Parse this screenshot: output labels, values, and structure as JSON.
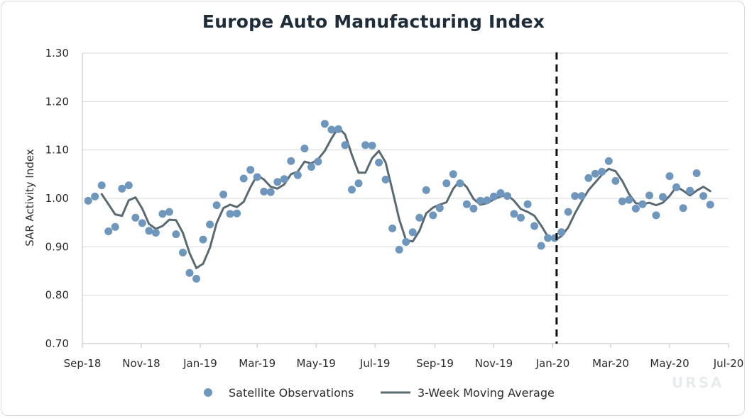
{
  "chart_data": {
    "type": "line",
    "title": "Europe Auto Manufacturing Index",
    "ylabel": "SAR Activity Index",
    "xlabel": "",
    "ylim": [
      0.7,
      1.3
    ],
    "xlim": [
      "2018-09-01",
      "2020-07-01"
    ],
    "y_ticks": [
      "0.70",
      "0.80",
      "0.90",
      "1.00",
      "1.10",
      "1.20",
      "1.30"
    ],
    "x_ticks": [
      {
        "date": "2018-09-01",
        "label": "Sep-18"
      },
      {
        "date": "2018-11-01",
        "label": "Nov-18"
      },
      {
        "date": "2019-01-01",
        "label": "Jan-19"
      },
      {
        "date": "2019-03-01",
        "label": "Mar-19"
      },
      {
        "date": "2019-05-01",
        "label": "May-19"
      },
      {
        "date": "2019-07-01",
        "label": "Jul-19"
      },
      {
        "date": "2019-09-01",
        "label": "Sep-19"
      },
      {
        "date": "2019-11-01",
        "label": "Nov-19"
      },
      {
        "date": "2020-01-01",
        "label": "Jan-20"
      },
      {
        "date": "2020-03-01",
        "label": "Mar-20"
      },
      {
        "date": "2020-05-01",
        "label": "May-20"
      },
      {
        "date": "2020-07-01",
        "label": "Jul-20"
      }
    ],
    "grid": "horizontal",
    "legend_position": "bottom",
    "annotation_line_date": "2020-01-05",
    "series": [
      {
        "name": "Satellite Observations",
        "style": "scatter",
        "color": "#6f97bd",
        "points": [
          [
            "2018-09-07",
            0.995
          ],
          [
            "2018-09-14",
            1.004
          ],
          [
            "2018-09-21",
            1.027
          ],
          [
            "2018-09-28",
            0.932
          ],
          [
            "2018-10-05",
            0.941
          ],
          [
            "2018-10-12",
            1.02
          ],
          [
            "2018-10-19",
            1.027
          ],
          [
            "2018-10-26",
            0.96
          ],
          [
            "2018-11-02",
            0.949
          ],
          [
            "2018-11-09",
            0.933
          ],
          [
            "2018-11-16",
            0.929
          ],
          [
            "2018-11-23",
            0.968
          ],
          [
            "2018-11-30",
            0.972
          ],
          [
            "2018-12-07",
            0.926
          ],
          [
            "2018-12-14",
            0.888
          ],
          [
            "2018-12-21",
            0.846
          ],
          [
            "2018-12-28",
            0.834
          ],
          [
            "2019-01-04",
            0.915
          ],
          [
            "2019-01-11",
            0.946
          ],
          [
            "2019-01-18",
            0.986
          ],
          [
            "2019-01-25",
            1.008
          ],
          [
            "2019-02-01",
            0.968
          ],
          [
            "2019-02-08",
            0.969
          ],
          [
            "2019-02-15",
            1.041
          ],
          [
            "2019-02-22",
            1.059
          ],
          [
            "2019-03-01",
            1.044
          ],
          [
            "2019-03-08",
            1.014
          ],
          [
            "2019-03-15",
            1.013
          ],
          [
            "2019-03-22",
            1.034
          ],
          [
            "2019-03-29",
            1.04
          ],
          [
            "2019-04-05",
            1.077
          ],
          [
            "2019-04-12",
            1.048
          ],
          [
            "2019-04-19",
            1.103
          ],
          [
            "2019-04-26",
            1.065
          ],
          [
            "2019-05-03",
            1.076
          ],
          [
            "2019-05-10",
            1.154
          ],
          [
            "2019-05-17",
            1.142
          ],
          [
            "2019-05-24",
            1.143
          ],
          [
            "2019-05-31",
            1.11
          ],
          [
            "2019-06-07",
            1.018
          ],
          [
            "2019-06-14",
            1.031
          ],
          [
            "2019-06-21",
            1.11
          ],
          [
            "2019-06-28",
            1.109
          ],
          [
            "2019-07-05",
            1.074
          ],
          [
            "2019-07-12",
            1.039
          ],
          [
            "2019-07-19",
            0.938
          ],
          [
            "2019-07-26",
            0.894
          ],
          [
            "2019-08-02",
            0.91
          ],
          [
            "2019-08-09",
            0.93
          ],
          [
            "2019-08-16",
            0.96
          ],
          [
            "2019-08-23",
            1.017
          ],
          [
            "2019-08-30",
            0.965
          ],
          [
            "2019-09-06",
            0.98
          ],
          [
            "2019-09-13",
            1.031
          ],
          [
            "2019-09-20",
            1.05
          ],
          [
            "2019-09-27",
            1.031
          ],
          [
            "2019-10-04",
            0.988
          ],
          [
            "2019-10-11",
            0.979
          ],
          [
            "2019-10-18",
            0.995
          ],
          [
            "2019-10-25",
            0.996
          ],
          [
            "2019-11-01",
            1.004
          ],
          [
            "2019-11-08",
            1.011
          ],
          [
            "2019-11-15",
            1.005
          ],
          [
            "2019-11-22",
            0.968
          ],
          [
            "2019-11-29",
            0.96
          ],
          [
            "2019-12-06",
            0.988
          ],
          [
            "2019-12-13",
            0.943
          ],
          [
            "2019-12-20",
            0.902
          ],
          [
            "2019-12-27",
            0.918
          ],
          [
            "2020-01-03",
            0.918
          ],
          [
            "2020-01-10",
            0.93
          ],
          [
            "2020-01-17",
            0.972
          ],
          [
            "2020-01-24",
            1.005
          ],
          [
            "2020-01-31",
            1.005
          ],
          [
            "2020-02-07",
            1.042
          ],
          [
            "2020-02-14",
            1.051
          ],
          [
            "2020-02-21",
            1.055
          ],
          [
            "2020-02-28",
            1.077
          ],
          [
            "2020-03-06",
            1.036
          ],
          [
            "2020-03-13",
            0.994
          ],
          [
            "2020-03-20",
            0.997
          ],
          [
            "2020-03-27",
            0.979
          ],
          [
            "2020-04-03",
            0.988
          ],
          [
            "2020-04-10",
            1.006
          ],
          [
            "2020-04-17",
            0.965
          ],
          [
            "2020-04-24",
            1.003
          ],
          [
            "2020-05-01",
            1.046
          ],
          [
            "2020-05-08",
            1.023
          ],
          [
            "2020-05-15",
            0.98
          ],
          [
            "2020-05-22",
            1.016
          ],
          [
            "2020-05-29",
            1.052
          ],
          [
            "2020-06-05",
            1.005
          ],
          [
            "2020-06-12",
            0.987
          ]
        ]
      },
      {
        "name": "3-Week Moving Average",
        "style": "line",
        "color": "#5a6a72",
        "points": [
          [
            "2018-09-21",
            1.009
          ],
          [
            "2018-09-28",
            0.988
          ],
          [
            "2018-10-05",
            0.967
          ],
          [
            "2018-10-12",
            0.964
          ],
          [
            "2018-10-19",
            0.996
          ],
          [
            "2018-10-26",
            1.002
          ],
          [
            "2018-11-02",
            0.979
          ],
          [
            "2018-11-09",
            0.947
          ],
          [
            "2018-11-16",
            0.937
          ],
          [
            "2018-11-23",
            0.943
          ],
          [
            "2018-11-30",
            0.956
          ],
          [
            "2018-12-07",
            0.955
          ],
          [
            "2018-12-14",
            0.929
          ],
          [
            "2018-12-21",
            0.887
          ],
          [
            "2018-12-28",
            0.856
          ],
          [
            "2019-01-04",
            0.865
          ],
          [
            "2019-01-11",
            0.898
          ],
          [
            "2019-01-18",
            0.949
          ],
          [
            "2019-01-25",
            0.98
          ],
          [
            "2019-02-01",
            0.987
          ],
          [
            "2019-02-08",
            0.982
          ],
          [
            "2019-02-15",
            0.993
          ],
          [
            "2019-02-22",
            1.023
          ],
          [
            "2019-03-01",
            1.048
          ],
          [
            "2019-03-08",
            1.039
          ],
          [
            "2019-03-15",
            1.024
          ],
          [
            "2019-03-22",
            1.02
          ],
          [
            "2019-03-29",
            1.029
          ],
          [
            "2019-04-05",
            1.05
          ],
          [
            "2019-04-12",
            1.055
          ],
          [
            "2019-04-19",
            1.076
          ],
          [
            "2019-04-26",
            1.072
          ],
          [
            "2019-05-03",
            1.081
          ],
          [
            "2019-05-10",
            1.098
          ],
          [
            "2019-05-17",
            1.124
          ],
          [
            "2019-05-24",
            1.146
          ],
          [
            "2019-05-31",
            1.132
          ],
          [
            "2019-06-07",
            1.09
          ],
          [
            "2019-06-14",
            1.053
          ],
          [
            "2019-06-21",
            1.053
          ],
          [
            "2019-06-28",
            1.083
          ],
          [
            "2019-07-05",
            1.098
          ],
          [
            "2019-07-12",
            1.074
          ],
          [
            "2019-07-19",
            1.017
          ],
          [
            "2019-07-26",
            0.957
          ],
          [
            "2019-08-02",
            0.914
          ],
          [
            "2019-08-09",
            0.911
          ],
          [
            "2019-08-16",
            0.933
          ],
          [
            "2019-08-23",
            0.969
          ],
          [
            "2019-08-30",
            0.981
          ],
          [
            "2019-09-06",
            0.987
          ],
          [
            "2019-09-13",
            0.992
          ],
          [
            "2019-09-20",
            1.02
          ],
          [
            "2019-09-27",
            1.037
          ],
          [
            "2019-10-04",
            1.023
          ],
          [
            "2019-10-11",
            0.999
          ],
          [
            "2019-10-18",
            0.987
          ],
          [
            "2019-10-25",
            0.99
          ],
          [
            "2019-11-01",
            0.998
          ],
          [
            "2019-11-08",
            1.004
          ],
          [
            "2019-11-15",
            1.007
          ],
          [
            "2019-11-22",
            0.995
          ],
          [
            "2019-11-29",
            0.978
          ],
          [
            "2019-12-06",
            0.972
          ],
          [
            "2019-12-13",
            0.964
          ],
          [
            "2019-12-20",
            0.944
          ],
          [
            "2019-12-27",
            0.921
          ],
          [
            "2020-01-03",
            0.913
          ],
          [
            "2020-01-10",
            0.922
          ],
          [
            "2020-01-17",
            0.94
          ],
          [
            "2020-01-24",
            0.969
          ],
          [
            "2020-01-31",
            0.994
          ],
          [
            "2020-02-07",
            1.017
          ],
          [
            "2020-02-14",
            1.033
          ],
          [
            "2020-02-21",
            1.049
          ],
          [
            "2020-02-28",
            1.061
          ],
          [
            "2020-03-06",
            1.056
          ],
          [
            "2020-03-13",
            1.036
          ],
          [
            "2020-03-20",
            1.009
          ],
          [
            "2020-03-27",
            0.99
          ],
          [
            "2020-04-03",
            0.988
          ],
          [
            "2020-04-10",
            0.991
          ],
          [
            "2020-04-17",
            0.986
          ],
          [
            "2020-04-24",
            0.991
          ],
          [
            "2020-05-01",
            1.005
          ],
          [
            "2020-05-08",
            1.024
          ],
          [
            "2020-05-15",
            1.016
          ],
          [
            "2020-05-22",
            1.006
          ],
          [
            "2020-05-29",
            1.016
          ],
          [
            "2020-06-05",
            1.024
          ],
          [
            "2020-06-12",
            1.015
          ]
        ]
      }
    ]
  },
  "watermark": "URSA"
}
